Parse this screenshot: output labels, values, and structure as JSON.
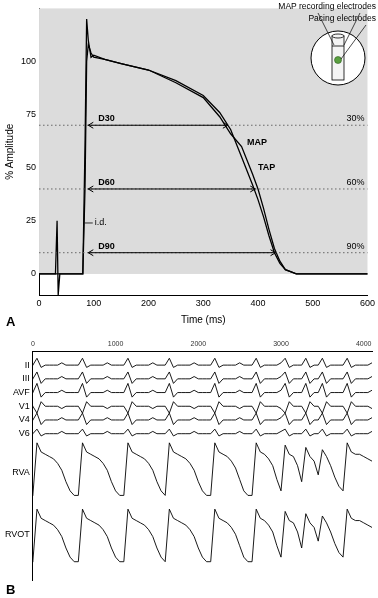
{
  "chart_data": [
    {
      "type": "line",
      "panel_label": "A",
      "x_label": "Time (ms)",
      "y_label": "% Amplitude",
      "xlim": [
        0,
        600
      ],
      "xticks": [
        0,
        100,
        200,
        300,
        400,
        500,
        600
      ],
      "ylim": [
        -10,
        125
      ],
      "yticks": [
        0,
        25,
        50,
        75,
        100
      ],
      "grid": false,
      "x": [
        0,
        30,
        33,
        35,
        38,
        80,
        84,
        87,
        90,
        95,
        100,
        120,
        150,
        200,
        250,
        300,
        330,
        350,
        370,
        390,
        400,
        410,
        420,
        430,
        440,
        450,
        470,
        600
      ],
      "series": [
        {
          "name": "MAP",
          "color": "#000000",
          "label_position": {
            "x": 380,
            "y": 62
          },
          "values": [
            0,
            0,
            25,
            -10,
            0,
            0,
            60,
            120,
            110,
            102,
            103,
            101,
            99,
            96,
            91,
            84,
            76,
            68,
            55,
            42,
            35,
            27,
            18,
            10,
            5,
            2,
            0,
            0
          ]
        },
        {
          "name": "TAP",
          "color": "#000000",
          "label_position": {
            "x": 400,
            "y": 50
          },
          "values": [
            0,
            0,
            0,
            0,
            0,
            0,
            40,
            100,
            108,
            104,
            102,
            101,
            99,
            96,
            90,
            83,
            74,
            66,
            60,
            47,
            40,
            31,
            21,
            12,
            6,
            2,
            0,
            0
          ]
        }
      ],
      "durations": [
        {
          "label": "D30",
          "level_label": "30%",
          "y": 70,
          "x_start": 90,
          "x_end": 345
        },
        {
          "label": "D60",
          "level_label": "60%",
          "y": 40,
          "x_start": 90,
          "x_end": 395
        },
        {
          "label": "D90",
          "level_label": "90%",
          "y": 10,
          "x_start": 90,
          "x_end": 432
        }
      ],
      "annotations": [
        {
          "text": "i.d.",
          "x": 100,
          "y": 24
        }
      ],
      "inset": {
        "labels": [
          "MAP recording electrodes",
          "Pacing electrodes"
        ]
      }
    },
    {
      "type": "line",
      "panel_label": "B",
      "xlim": [
        0,
        4100
      ],
      "xticks": [
        0,
        1000,
        2000,
        3000,
        4000
      ],
      "ylim": [
        0,
        100
      ],
      "yticks": [
        {
          "value": 94,
          "label": "II"
        },
        {
          "value": 88,
          "label": "III"
        },
        {
          "value": 82,
          "label": "AVF"
        },
        {
          "value": 76,
          "label": "V1"
        },
        {
          "value": 70,
          "label": "V4"
        },
        {
          "value": 64,
          "label": "V6"
        },
        {
          "value": 47,
          "label": "RVA"
        },
        {
          "value": 20,
          "label": "RVOT"
        }
      ],
      "grid": false,
      "x": [
        0,
        50,
        100,
        150,
        200,
        250,
        300,
        350,
        400,
        450,
        500,
        550,
        600,
        650,
        700,
        750,
        800,
        850,
        900,
        950,
        1000,
        1050,
        1100,
        1150,
        1200,
        1250,
        1300,
        1350,
        1400,
        1450,
        1500,
        1550,
        1600,
        1650,
        1700,
        1750,
        1800,
        1850,
        1900,
        1950,
        2000,
        2050,
        2100,
        2150,
        2200,
        2250,
        2300,
        2350,
        2400,
        2450,
        2500,
        2550,
        2600,
        2650,
        2700,
        2750,
        2800,
        2850,
        2900,
        2950,
        3000,
        3050,
        3100,
        3150,
        3200,
        3250,
        3300,
        3350,
        3400,
        3450,
        3500,
        3550,
        3600,
        3650,
        3700,
        3750,
        3800,
        3850,
        3900,
        3950,
        4000,
        4050,
        4100
      ],
      "series": [
        {
          "color": "#000000",
          "values": [
            94,
            97,
            93,
            94,
            94,
            94,
            94,
            95,
            94,
            94,
            94,
            94,
            97,
            93,
            94,
            94,
            94,
            94,
            95,
            94,
            94,
            94,
            94,
            97,
            93,
            94,
            94,
            94,
            94,
            95,
            94,
            94,
            94,
            97,
            93,
            94,
            94,
            94,
            94,
            95,
            94,
            94,
            94,
            94,
            97,
            93,
            94,
            94,
            94,
            94,
            95,
            94,
            94,
            94,
            97,
            93,
            94,
            94,
            94,
            94,
            95,
            97,
            93,
            94,
            94,
            94,
            97,
            93,
            94,
            94,
            97,
            93,
            94,
            94,
            94,
            94,
            97,
            93,
            94,
            94,
            94,
            94,
            95
          ]
        },
        {
          "color": "#000000",
          "values": [
            88,
            91,
            86,
            88,
            88,
            88,
            88,
            89,
            88,
            88,
            88,
            88,
            91,
            86,
            88,
            88,
            88,
            88,
            89,
            88,
            88,
            88,
            88,
            91,
            86,
            88,
            88,
            88,
            88,
            89,
            88,
            88,
            88,
            91,
            86,
            88,
            88,
            88,
            88,
            89,
            88,
            88,
            88,
            88,
            91,
            86,
            88,
            88,
            88,
            88,
            89,
            88,
            88,
            88,
            91,
            86,
            88,
            88,
            88,
            88,
            89,
            91,
            86,
            88,
            88,
            88,
            91,
            86,
            88,
            88,
            91,
            86,
            88,
            88,
            88,
            88,
            91,
            86,
            88,
            88,
            88,
            88,
            89
          ]
        },
        {
          "color": "#000000",
          "values": [
            82,
            86,
            80,
            82,
            82,
            82,
            82,
            83,
            82,
            82,
            82,
            82,
            86,
            80,
            82,
            82,
            82,
            82,
            83,
            82,
            82,
            82,
            82,
            86,
            80,
            82,
            82,
            82,
            82,
            83,
            82,
            82,
            82,
            86,
            80,
            82,
            82,
            82,
            82,
            83,
            82,
            82,
            82,
            82,
            86,
            80,
            82,
            82,
            82,
            82,
            83,
            82,
            82,
            82,
            86,
            80,
            82,
            82,
            82,
            82,
            83,
            86,
            80,
            82,
            82,
            82,
            86,
            80,
            82,
            82,
            86,
            80,
            82,
            82,
            82,
            82,
            86,
            80,
            82,
            82,
            82,
            82,
            83
          ]
        },
        {
          "color": "#000000",
          "values": [
            76,
            73,
            78,
            76,
            76,
            76,
            76,
            75,
            76,
            76,
            76,
            76,
            73,
            78,
            76,
            76,
            76,
            76,
            75,
            76,
            76,
            76,
            76,
            73,
            78,
            76,
            76,
            76,
            76,
            75,
            76,
            76,
            76,
            73,
            78,
            76,
            76,
            76,
            76,
            75,
            76,
            76,
            76,
            76,
            73,
            78,
            76,
            76,
            76,
            76,
            75,
            76,
            76,
            76,
            73,
            78,
            76,
            76,
            76,
            76,
            75,
            73,
            78,
            76,
            76,
            76,
            73,
            78,
            76,
            76,
            73,
            78,
            76,
            76,
            76,
            76,
            73,
            78,
            76,
            76,
            76,
            76,
            75
          ]
        },
        {
          "color": "#000000",
          "values": [
            70,
            73,
            68,
            70,
            70,
            70,
            70,
            71,
            70,
            70,
            70,
            70,
            73,
            68,
            70,
            70,
            70,
            70,
            71,
            70,
            70,
            70,
            70,
            73,
            68,
            70,
            70,
            70,
            70,
            71,
            70,
            70,
            70,
            73,
            68,
            70,
            70,
            70,
            70,
            71,
            70,
            70,
            70,
            70,
            73,
            68,
            70,
            70,
            70,
            70,
            71,
            70,
            70,
            70,
            73,
            68,
            70,
            70,
            70,
            70,
            71,
            73,
            68,
            70,
            70,
            70,
            73,
            68,
            70,
            70,
            73,
            68,
            70,
            70,
            70,
            70,
            73,
            68,
            70,
            70,
            70,
            70,
            71
          ]
        },
        {
          "color": "#000000",
          "values": [
            64,
            66,
            63,
            64,
            64,
            64,
            64,
            65,
            64,
            64,
            64,
            64,
            66,
            63,
            64,
            64,
            64,
            64,
            65,
            64,
            64,
            64,
            64,
            66,
            63,
            64,
            64,
            64,
            64,
            65,
            64,
            64,
            64,
            66,
            63,
            64,
            64,
            64,
            64,
            65,
            64,
            64,
            64,
            64,
            66,
            63,
            64,
            64,
            64,
            64,
            65,
            64,
            64,
            64,
            66,
            63,
            64,
            64,
            64,
            64,
            65,
            66,
            63,
            64,
            64,
            64,
            66,
            63,
            64,
            64,
            66,
            63,
            64,
            64,
            64,
            64,
            66,
            63,
            64,
            64,
            64,
            64,
            65
          ]
        },
        {
          "color": "#000000",
          "values": [
            37,
            60,
            56,
            55,
            54,
            53,
            51,
            48,
            43,
            39,
            37,
            37,
            60,
            56,
            55,
            54,
            53,
            51,
            48,
            43,
            39,
            37,
            37,
            60,
            56,
            55,
            54,
            53,
            51,
            48,
            43,
            39,
            37,
            60,
            56,
            55,
            54,
            53,
            51,
            48,
            43,
            39,
            37,
            37,
            60,
            56,
            55,
            54,
            52,
            49,
            44,
            39,
            37,
            37,
            60,
            56,
            55,
            53,
            50,
            44,
            39,
            59,
            55,
            54,
            50,
            43,
            58,
            54,
            52,
            46,
            57,
            54,
            50,
            45,
            41,
            39,
            60,
            56,
            55,
            55,
            54,
            53,
            52
          ]
        },
        {
          "color": "#000000",
          "values": [
            8,
            31,
            27,
            26,
            25,
            24,
            22,
            19,
            14,
            10,
            8,
            8,
            31,
            27,
            26,
            25,
            24,
            22,
            19,
            14,
            10,
            8,
            8,
            31,
            27,
            26,
            25,
            24,
            22,
            19,
            14,
            10,
            8,
            31,
            27,
            26,
            25,
            24,
            22,
            19,
            14,
            10,
            8,
            8,
            31,
            27,
            26,
            25,
            23,
            20,
            15,
            10,
            8,
            8,
            31,
            27,
            26,
            24,
            21,
            15,
            10,
            30,
            26,
            25,
            21,
            14,
            29,
            25,
            23,
            17,
            28,
            25,
            21,
            16,
            12,
            10,
            31,
            27,
            26,
            26,
            25,
            24,
            23
          ]
        }
      ]
    }
  ]
}
